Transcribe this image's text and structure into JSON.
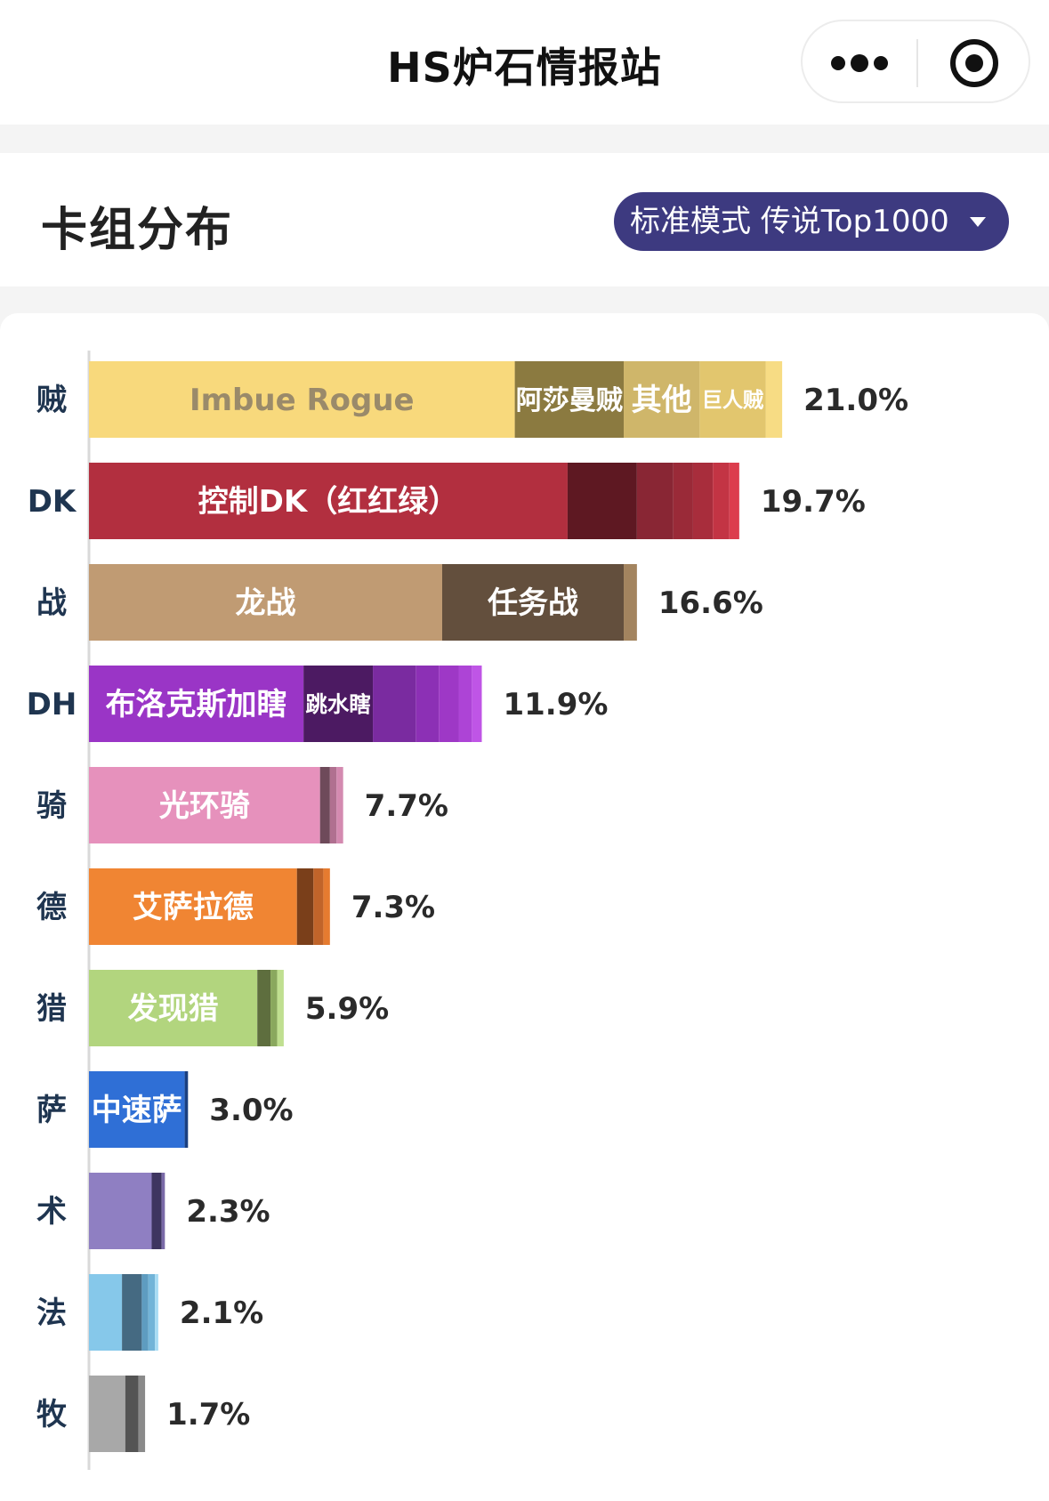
{
  "nav": {
    "title": "HS炉石情报站",
    "more_icon": "more-dots-icon",
    "close_icon": "target-circle-icon"
  },
  "header": {
    "title": "卡组分布",
    "mode_label": "标准模式 传说Top1000",
    "mode_caret_icon": "caret-down-icon"
  },
  "chart_data": {
    "type": "bar",
    "orientation": "horizontal",
    "stacked": true,
    "unit": "%",
    "xlim": [
      0,
      22.5
    ],
    "grid": false,
    "legend": "none",
    "categories": [
      "贼",
      "DK",
      "战",
      "DH",
      "骑",
      "德",
      "猎",
      "萨",
      "术",
      "法",
      "牧"
    ],
    "totals": [
      21.0,
      19.7,
      16.6,
      11.9,
      7.7,
      7.3,
      5.9,
      3.0,
      2.3,
      2.1,
      1.7
    ],
    "total_labels": [
      "21.0%",
      "19.7%",
      "16.6%",
      "11.9%",
      "7.7%",
      "7.3%",
      "5.9%",
      "3.0%",
      "2.3%",
      "2.1%",
      "1.7%"
    ],
    "rows": [
      {
        "class": "贼",
        "total": 21.0,
        "segments": [
          {
            "label": "Imbue Rogue",
            "value": 12.9,
            "color": "#f8d97c",
            "label_color": "#9a8a6a"
          },
          {
            "label": "阿莎曼贼",
            "value": 3.3,
            "color": "#8b7a40",
            "label_color": "#ffffff"
          },
          {
            "label": "其他",
            "value": 2.3,
            "color": "#cfb66a",
            "label_color": "#ffffff"
          },
          {
            "label": "巨人贼",
            "value": 2.0,
            "color": "#e2c66e",
            "label_color": "#ffffff"
          },
          {
            "label": "",
            "value": 0.5,
            "color": "#f7dc84"
          }
        ]
      },
      {
        "class": "DK",
        "total": 19.7,
        "segments": [
          {
            "label": "控制DK（红红绿）",
            "value": 14.5,
            "color": "#b22f3f",
            "label_color": "#ffffff"
          },
          {
            "label": "",
            "value": 2.1,
            "color": "#5e1822"
          },
          {
            "label": "",
            "value": 1.1,
            "color": "#892634"
          },
          {
            "label": "",
            "value": 0.6,
            "color": "#9a2a38"
          },
          {
            "label": "",
            "value": 0.6,
            "color": "#a82d3c"
          },
          {
            "label": "",
            "value": 0.5,
            "color": "#c33444"
          },
          {
            "label": "",
            "value": 0.3,
            "color": "#dc3d4d"
          }
        ]
      },
      {
        "class": "战",
        "total": 16.6,
        "segments": [
          {
            "label": "龙战",
            "value": 10.7,
            "color": "#c09b73",
            "label_color": "#ffffff"
          },
          {
            "label": "任务战",
            "value": 5.5,
            "color": "#634f3d",
            "label_color": "#ffffff"
          },
          {
            "label": "",
            "value": 0.4,
            "color": "#a3845f"
          }
        ]
      },
      {
        "class": "DH",
        "total": 11.9,
        "segments": [
          {
            "label": "布洛克斯加瞎",
            "value": 6.5,
            "color": "#9a35c6",
            "label_color": "#ffffff"
          },
          {
            "label": "跳水瞎",
            "value": 2.1,
            "color": "#4c1a62",
            "label_color": "#ffffff"
          },
          {
            "label": "",
            "value": 1.3,
            "color": "#7a2ba0"
          },
          {
            "label": "",
            "value": 0.7,
            "color": "#8c30b5"
          },
          {
            "label": "",
            "value": 0.6,
            "color": "#9e38c6"
          },
          {
            "label": "",
            "value": 0.4,
            "color": "#ad44d6"
          },
          {
            "label": "",
            "value": 0.3,
            "color": "#bf55e6"
          }
        ]
      },
      {
        "class": "骑",
        "total": 7.7,
        "segments": [
          {
            "label": "光环骑",
            "value": 7.0,
            "color": "#e691bc",
            "label_color": "#ffffff"
          },
          {
            "label": "",
            "value": 0.3,
            "color": "#6e4a5a"
          },
          {
            "label": "",
            "value": 0.2,
            "color": "#b07090"
          },
          {
            "label": "",
            "value": 0.2,
            "color": "#d48ab0"
          }
        ]
      },
      {
        "class": "德",
        "total": 7.3,
        "segments": [
          {
            "label": "艾萨拉德",
            "value": 6.3,
            "color": "#f08533",
            "label_color": "#ffffff"
          },
          {
            "label": "",
            "value": 0.5,
            "color": "#7a3f1a"
          },
          {
            "label": "",
            "value": 0.3,
            "color": "#c0642a"
          },
          {
            "label": "",
            "value": 0.2,
            "color": "#e57b30"
          }
        ]
      },
      {
        "class": "猎",
        "total": 5.9,
        "segments": [
          {
            "label": "发现猎",
            "value": 5.1,
            "color": "#b2d57e",
            "label_color": "#ffffff"
          },
          {
            "label": "",
            "value": 0.4,
            "color": "#5e6e3e"
          },
          {
            "label": "",
            "value": 0.2,
            "color": "#8aa85e"
          },
          {
            "label": "",
            "value": 0.2,
            "color": "#c0df90"
          }
        ]
      },
      {
        "class": "萨",
        "total": 3.0,
        "segments": [
          {
            "label": "中速萨",
            "value": 2.9,
            "color": "#2f6fd6",
            "label_color": "#ffffff"
          },
          {
            "label": "",
            "value": 0.1,
            "color": "#1a3f80"
          }
        ]
      },
      {
        "class": "术",
        "total": 2.3,
        "segments": [
          {
            "label": "",
            "value": 1.9,
            "color": "#8f7fc2"
          },
          {
            "label": "",
            "value": 0.3,
            "color": "#3e3560"
          },
          {
            "label": "",
            "value": 0.1,
            "color": "#7a6aa8"
          }
        ]
      },
      {
        "class": "法",
        "total": 2.1,
        "segments": [
          {
            "label": "",
            "value": 1.0,
            "color": "#86c8ea"
          },
          {
            "label": "",
            "value": 0.6,
            "color": "#456a82"
          },
          {
            "label": "",
            "value": 0.2,
            "color": "#5e9cc0"
          },
          {
            "label": "",
            "value": 0.2,
            "color": "#72b4d8"
          },
          {
            "label": "",
            "value": 0.1,
            "color": "#a8dcf4"
          }
        ]
      },
      {
        "class": "牧",
        "total": 1.7,
        "segments": [
          {
            "label": "",
            "value": 1.1,
            "color": "#a8a8a8"
          },
          {
            "label": "",
            "value": 0.4,
            "color": "#545454"
          },
          {
            "label": "",
            "value": 0.2,
            "color": "#8a8a8a"
          }
        ]
      }
    ]
  }
}
